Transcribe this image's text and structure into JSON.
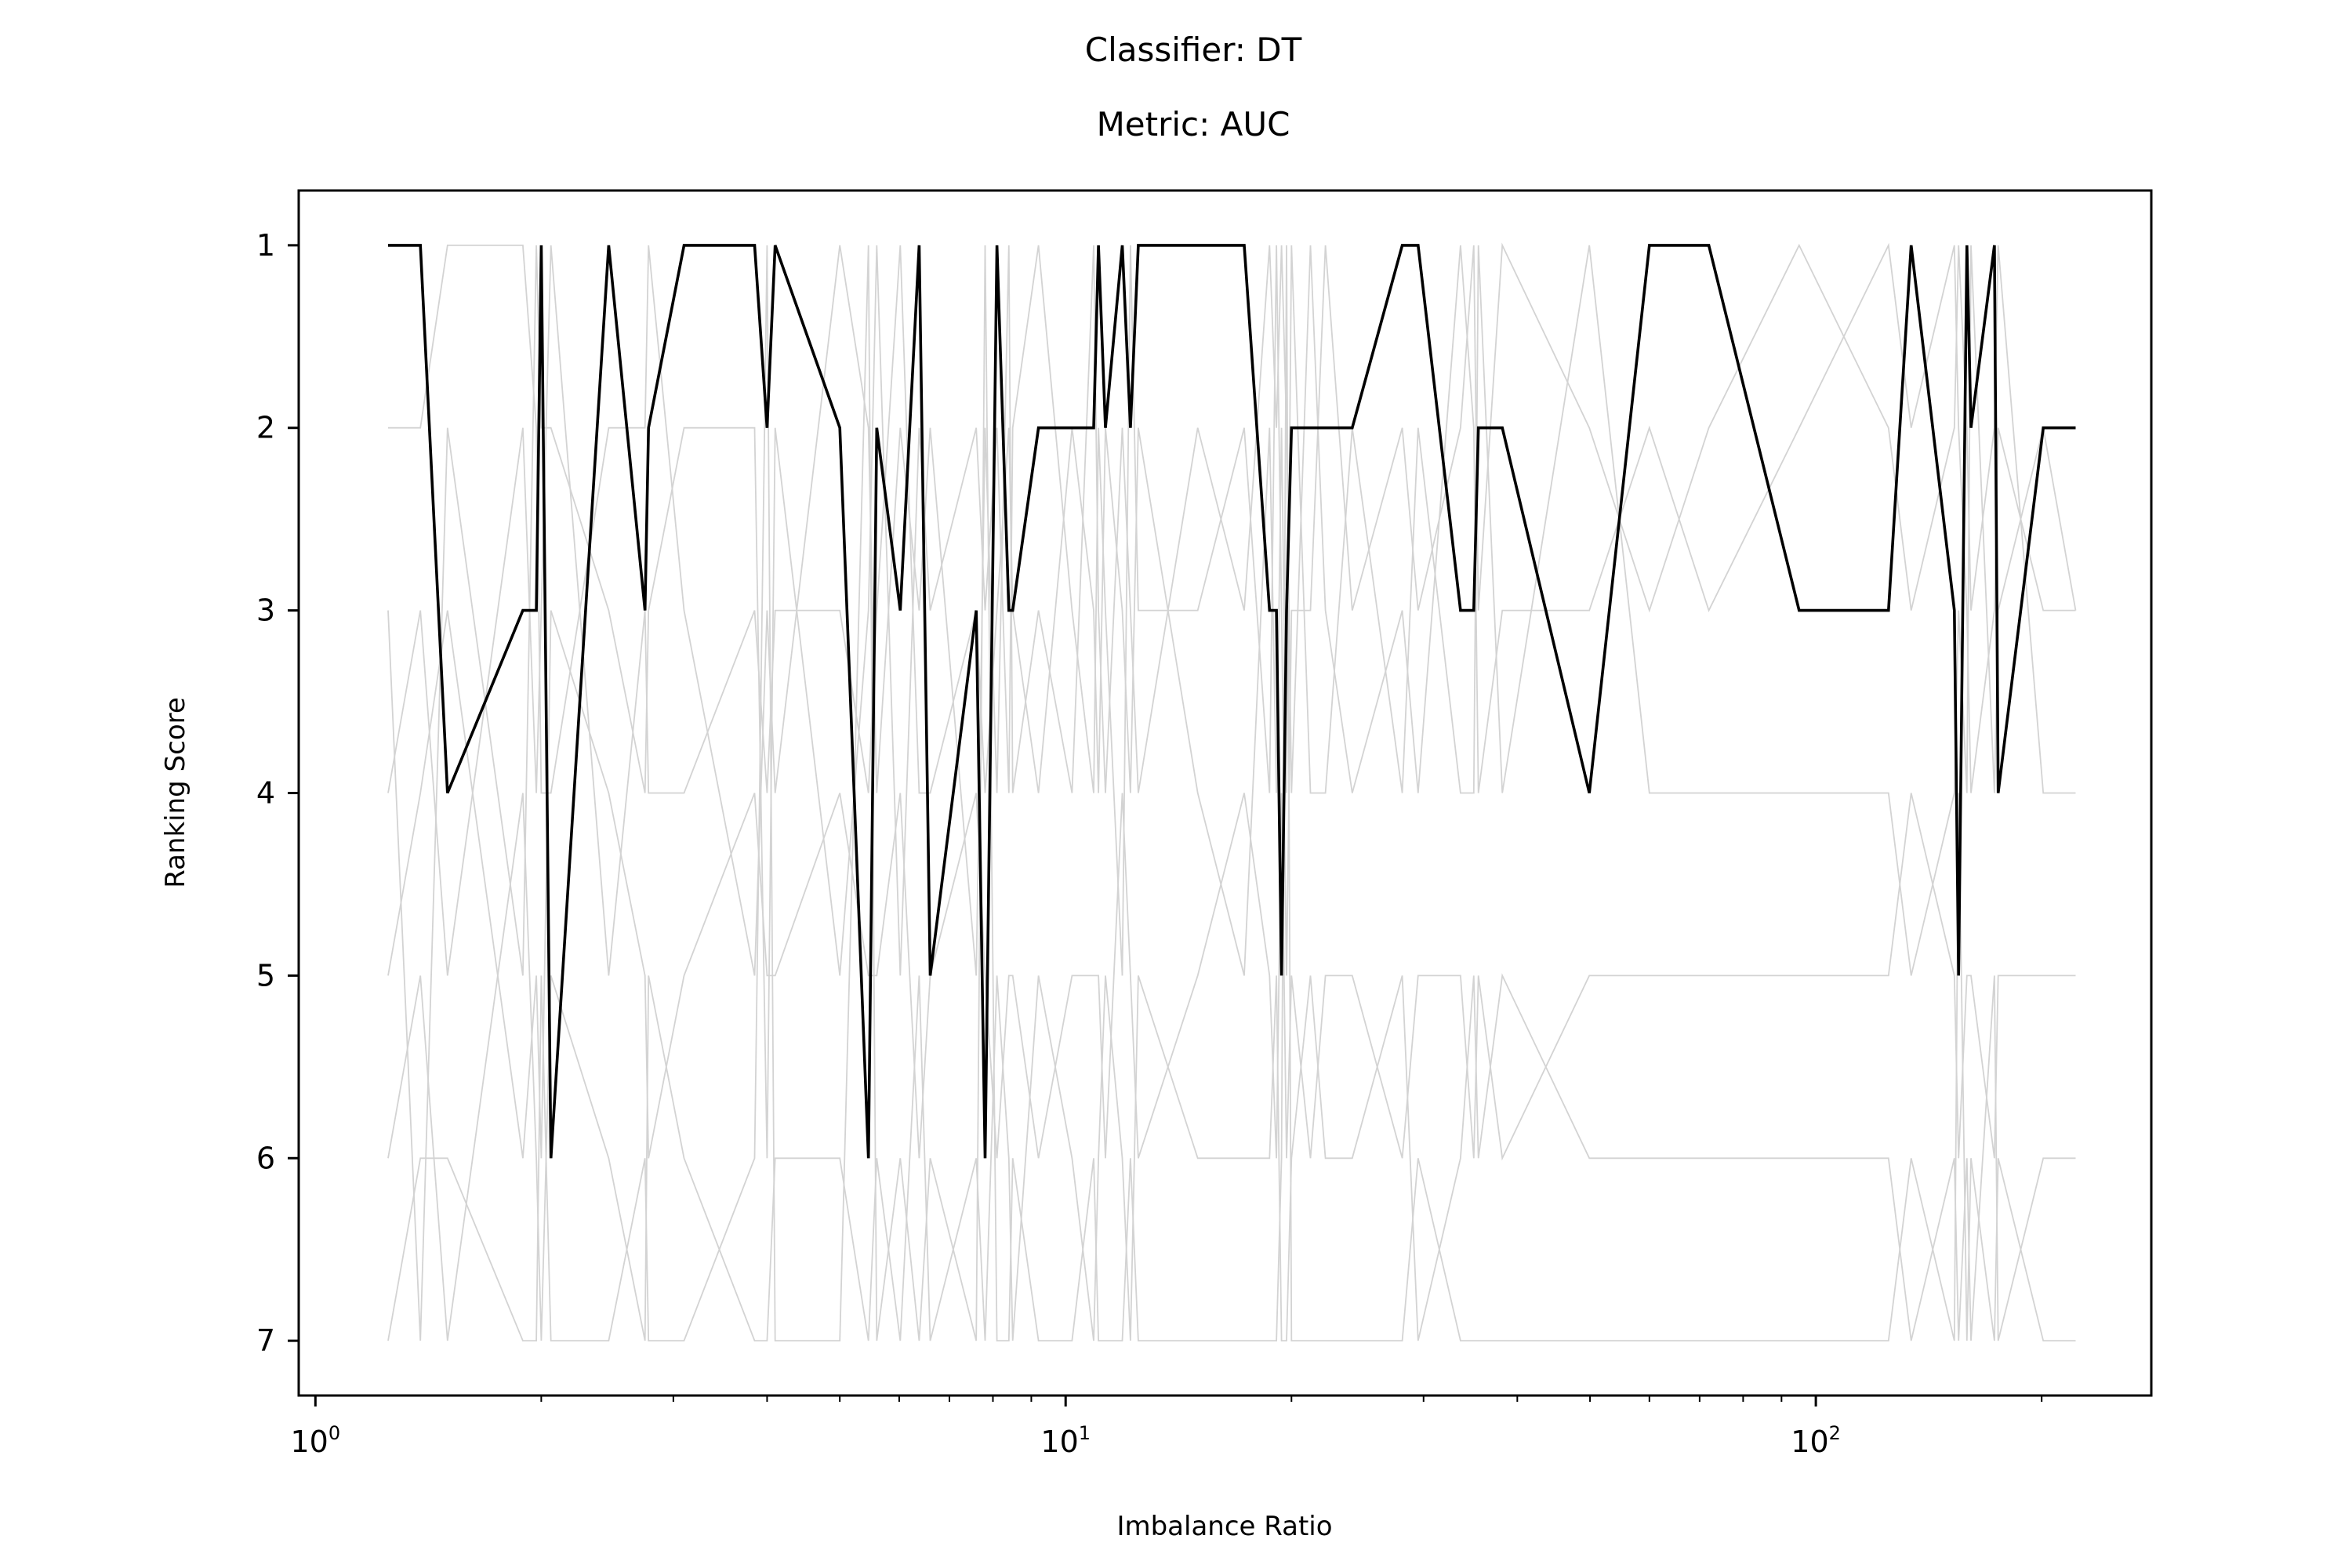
{
  "chart_data": {
    "type": "line",
    "title": "Classifier: DT",
    "subtitle": "Metric: AUC",
    "xlabel": "Imbalance Ratio",
    "ylabel": "Ranking Score",
    "x_scale": "log",
    "xlim": [
      0.95,
      280
    ],
    "ylim": [
      7.3,
      0.7
    ],
    "y_inverted": true,
    "x_ticks": [
      {
        "base": "10",
        "exp": "0",
        "value": 1
      },
      {
        "base": "10",
        "exp": "1",
        "value": 10
      },
      {
        "base": "10",
        "exp": "2",
        "value": 100
      }
    ],
    "y_ticks": [
      {
        "label": "1",
        "value": 1
      },
      {
        "label": "2",
        "value": 2
      },
      {
        "label": "3",
        "value": 3
      },
      {
        "label": "4",
        "value": 4
      },
      {
        "label": "5",
        "value": 5
      },
      {
        "label": "6",
        "value": 6
      },
      {
        "label": "7",
        "value": 7
      }
    ],
    "grid": false,
    "highlight_color": "#000000",
    "background_color": "#d3d3d3",
    "x": [
      1.25,
      1.38,
      1.5,
      1.89,
      1.97,
      2.0,
      2.06,
      2.46,
      2.75,
      2.78,
      3.1,
      3.85,
      4.0,
      4.1,
      5.0,
      5.46,
      5.6,
      6.02,
      6.38,
      6.6,
      7.6,
      7.81,
      8.1,
      8.4,
      8.5,
      9.2,
      10.2,
      10.9,
      11.06,
      11.3,
      11.9,
      12.2,
      12.5,
      15.0,
      17.3,
      18.7,
      19.1,
      19.4,
      19.7,
      20.0,
      21.2,
      22.2,
      24.1,
      28.1,
      29.5,
      33.6,
      35.0,
      35.5,
      38.2,
      49.9,
      60.0,
      72.0,
      95.0,
      125.0,
      134.0,
      153.0,
      155.0,
      159.0,
      161.0,
      173.0,
      175.0,
      201.0,
      222.0
    ],
    "series": [
      {
        "highlight": true,
        "values": [
          1,
          1,
          4,
          3,
          3,
          1,
          6,
          1,
          3,
          2,
          1,
          1,
          2,
          1,
          2,
          6,
          2,
          3,
          1,
          5,
          3,
          6,
          1,
          3,
          3,
          2,
          2,
          2,
          1,
          2,
          1,
          2,
          1,
          1,
          1,
          3,
          3,
          5,
          3,
          2,
          2,
          2,
          2,
          1,
          1,
          3,
          3,
          2,
          2,
          4,
          1,
          1,
          3,
          3,
          1,
          3,
          5,
          1,
          2,
          1,
          4,
          2,
          2
        ]
      },
      {
        "highlight": false,
        "values": [
          2,
          2,
          1,
          1,
          2,
          4,
          4,
          2,
          2,
          1,
          3,
          5,
          3,
          4,
          1,
          2,
          4,
          2,
          3,
          2,
          5,
          2,
          4,
          1,
          4,
          3,
          4,
          1,
          3,
          4,
          2,
          3,
          4,
          2,
          3,
          1,
          2,
          1,
          2,
          4,
          1,
          3,
          4,
          3,
          4,
          1,
          2,
          4,
          3,
          3,
          2,
          3,
          2,
          1,
          2,
          1,
          2,
          3,
          4,
          3,
          2,
          3,
          3
        ]
      },
      {
        "highlight": false,
        "values": [
          3,
          7,
          2,
          5,
          1,
          2,
          2,
          3,
          4,
          3,
          2,
          2,
          6,
          2,
          5,
          3,
          1,
          5,
          2,
          3,
          2,
          3,
          2,
          4,
          2,
          1,
          3,
          4,
          2,
          3,
          5,
          1,
          3,
          3,
          2,
          4,
          1,
          3,
          5,
          3,
          3,
          1,
          3,
          2,
          3,
          2,
          1,
          3,
          1,
          2,
          3,
          2,
          1,
          2,
          3,
          2,
          1,
          2,
          3,
          2,
          1,
          4,
          4
        ]
      },
      {
        "highlight": false,
        "values": [
          4,
          3,
          5,
          2,
          4,
          3,
          1,
          5,
          3,
          4,
          4,
          3,
          4,
          3,
          3,
          4,
          3,
          1,
          4,
          4,
          3,
          4,
          3,
          2,
          3,
          4,
          2,
          3,
          4,
          2,
          3,
          4,
          2,
          4,
          5,
          2,
          4,
          2,
          4,
          1,
          4,
          4,
          2,
          4,
          2,
          4,
          4,
          1,
          4,
          1,
          4,
          4,
          4,
          4,
          5,
          4,
          3,
          4,
          1,
          4,
          3,
          2,
          3
        ]
      },
      {
        "highlight": false,
        "values": [
          5,
          4,
          3,
          6,
          5,
          6,
          3,
          4,
          5,
          6,
          5,
          4,
          5,
          5,
          4,
          5,
          5,
          4,
          6,
          5,
          4,
          5,
          6,
          5,
          5,
          6,
          5,
          5,
          5,
          6,
          4,
          5,
          6,
          5,
          4,
          5,
          6,
          4,
          6,
          5,
          6,
          5,
          5,
          6,
          5,
          5,
          6,
          5,
          6,
          5,
          5,
          5,
          5,
          5,
          4,
          5,
          6,
          5,
          5,
          6,
          5,
          5,
          5
        ]
      },
      {
        "highlight": false,
        "values": [
          6,
          5,
          7,
          4,
          6,
          7,
          5,
          6,
          7,
          5,
          6,
          7,
          7,
          6,
          6,
          7,
          6,
          7,
          5,
          7,
          6,
          7,
          5,
          6,
          7,
          5,
          6,
          7,
          6,
          5,
          6,
          7,
          5,
          6,
          6,
          6,
          5,
          7,
          7,
          6,
          5,
          6,
          6,
          5,
          7,
          6,
          5,
          6,
          5,
          6,
          6,
          6,
          6,
          6,
          7,
          6,
          7,
          6,
          7,
          5,
          7,
          6,
          6
        ]
      },
      {
        "highlight": false,
        "values": [
          7,
          6,
          6,
          7,
          7,
          5,
          7,
          7,
          6,
          7,
          7,
          6,
          1,
          7,
          7,
          1,
          7,
          6,
          7,
          6,
          7,
          1,
          7,
          7,
          6,
          7,
          7,
          6,
          7,
          7,
          7,
          6,
          7,
          7,
          7,
          7,
          7,
          6,
          1,
          7,
          7,
          7,
          7,
          7,
          6,
          7,
          7,
          7,
          7,
          7,
          7,
          7,
          7,
          7,
          6,
          7,
          4,
          7,
          6,
          7,
          6,
          7,
          7
        ]
      }
    ]
  }
}
